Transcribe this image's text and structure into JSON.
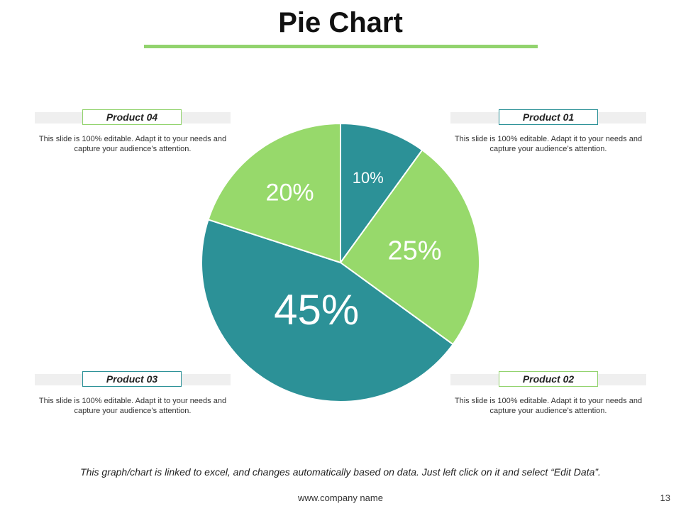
{
  "slide": {
    "title": "Pie Chart",
    "accent_color": "#92D36E",
    "footnote": "This graph/chart is linked to excel, and changes automatically based on data. Just left click on it and select “Edit Data”.",
    "footer_url": "www.company name",
    "page_number": "13"
  },
  "callouts": [
    {
      "id": "product-04",
      "label": "Product 04",
      "border_color": "#92D36E",
      "description": "This slide is 100% editable. Adapt it to your needs and capture your audience’s attention."
    },
    {
      "id": "product-01",
      "label": "Product 01",
      "border_color": "#2C9197",
      "description": "This slide is 100% editable. Adapt it to your needs and capture your audience’s attention."
    },
    {
      "id": "product-03",
      "label": "Product 03",
      "border_color": "#2C9197",
      "description": "This slide is 100% editable. Adapt it to your needs and capture your audience’s attention."
    },
    {
      "id": "product-02",
      "label": "Product 02",
      "border_color": "#92D36E",
      "description": "This slide is 100% editable. Adapt it to your needs and capture your audience’s attention."
    }
  ],
  "chart_data": {
    "type": "pie",
    "title": "",
    "categories": [
      "Product 01",
      "Product 02",
      "Product 03",
      "Product 04"
    ],
    "values": [
      10,
      25,
      45,
      20
    ],
    "labels": [
      "10%",
      "25%",
      "45%",
      "20%"
    ],
    "colors": [
      "#2C9197",
      "#97D96B",
      "#2C9197",
      "#97D96B"
    ],
    "start_angle_deg": 0,
    "direction": "clockwise"
  }
}
